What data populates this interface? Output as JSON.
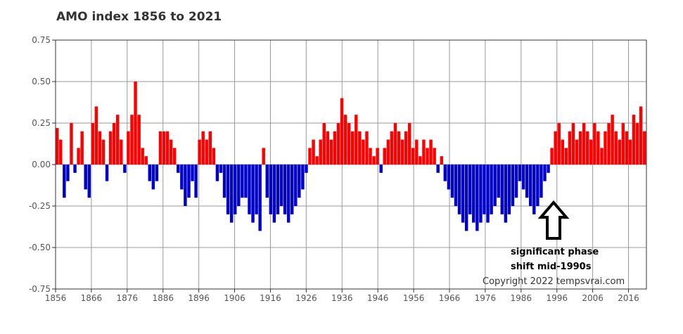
{
  "chart_data": {
    "type": "bar",
    "title": "AMO index 1856 to 2021",
    "xlabel": "",
    "ylabel": "",
    "xlim": [
      1856,
      2021
    ],
    "ylim": [
      -0.75,
      0.75
    ],
    "x_ticks": [
      "1856",
      "1866",
      "1876",
      "1886",
      "1896",
      "1906",
      "1916",
      "1926",
      "1936",
      "1946",
      "1956",
      "1966",
      "1976",
      "1986",
      "1996",
      "2006",
      "2016"
    ],
    "y_ticks": [
      "0.75",
      "0.50",
      "0.25",
      "0.00",
      "-0.25",
      "-0.50",
      "-0.75"
    ],
    "grid": true,
    "colors": {
      "positive": "#ff0000",
      "negative": "#0000cc",
      "grid": "#9a9a9a",
      "frame": "#333333"
    },
    "series": [
      {
        "x": [
          1856,
          1857,
          1858,
          1859,
          1860,
          1861,
          1862,
          1863,
          1864,
          1865,
          1866,
          1867,
          1868,
          1869,
          1870,
          1871,
          1872,
          1873,
          1874,
          1875,
          1876,
          1877,
          1878,
          1879,
          1880,
          1881,
          1882,
          1883,
          1884,
          1885,
          1886,
          1887,
          1888,
          1889,
          1890,
          1891,
          1892,
          1893,
          1894,
          1895,
          1896,
          1897,
          1898,
          1899,
          1900,
          1901,
          1902,
          1903,
          1904,
          1905,
          1906,
          1907,
          1908,
          1909,
          1910,
          1911,
          1912,
          1913,
          1914,
          1915,
          1916,
          1917,
          1918,
          1919,
          1920,
          1921,
          1922,
          1923,
          1924,
          1925,
          1926,
          1927,
          1928,
          1929,
          1930,
          1931,
          1932,
          1933,
          1934,
          1935,
          1936,
          1937,
          1938,
          1939,
          1940,
          1941,
          1942,
          1943,
          1944,
          1945,
          1946,
          1947,
          1948,
          1949,
          1950,
          1951,
          1952,
          1953,
          1954,
          1955,
          1956,
          1957,
          1958,
          1959,
          1960,
          1961,
          1962,
          1963,
          1964,
          1965,
          1966,
          1967,
          1968,
          1969,
          1970,
          1971,
          1972,
          1973,
          1974,
          1975,
          1976,
          1977,
          1978,
          1979,
          1980,
          1981,
          1982,
          1983,
          1984,
          1985,
          1986,
          1987,
          1988,
          1989,
          1990,
          1991,
          1992,
          1993,
          1994,
          1995,
          1996,
          1997,
          1998,
          1999,
          2000,
          2001,
          2002,
          2003,
          2004,
          2005,
          2006,
          2007,
          2008,
          2009,
          2010,
          2011,
          2012,
          2013,
          2014,
          2015,
          2016,
          2017,
          2018,
          2019,
          2020,
          2021
        ],
        "values": [
          0.22,
          0.15,
          -0.2,
          -0.1,
          0.25,
          -0.05,
          0.1,
          0.2,
          -0.15,
          -0.2,
          0.25,
          0.35,
          0.2,
          0.15,
          -0.1,
          0.2,
          0.25,
          0.3,
          0.15,
          -0.05,
          0.2,
          0.3,
          0.5,
          0.3,
          0.1,
          0.05,
          -0.1,
          -0.15,
          -0.1,
          0.2,
          0.2,
          0.2,
          0.15,
          0.1,
          -0.05,
          -0.15,
          -0.25,
          -0.2,
          -0.1,
          -0.2,
          0.15,
          0.2,
          0.15,
          0.2,
          0.1,
          -0.1,
          -0.05,
          -0.2,
          -0.3,
          -0.35,
          -0.3,
          -0.25,
          -0.2,
          -0.2,
          -0.3,
          -0.35,
          -0.3,
          -0.4,
          0.1,
          -0.2,
          -0.3,
          -0.35,
          -0.3,
          -0.25,
          -0.3,
          -0.35,
          -0.3,
          -0.25,
          -0.2,
          -0.15,
          -0.05,
          0.1,
          0.15,
          0.05,
          0.15,
          0.25,
          0.2,
          0.15,
          0.2,
          0.25,
          0.4,
          0.3,
          0.25,
          0.2,
          0.3,
          0.2,
          0.15,
          0.2,
          0.1,
          0.05,
          0.1,
          -0.05,
          0.1,
          0.15,
          0.2,
          0.25,
          0.2,
          0.15,
          0.2,
          0.25,
          0.1,
          0.15,
          0.05,
          0.15,
          0.1,
          0.15,
          0.1,
          -0.05,
          0.05,
          -0.1,
          -0.15,
          -0.2,
          -0.25,
          -0.3,
          -0.35,
          -0.4,
          -0.3,
          -0.35,
          -0.4,
          -0.35,
          -0.3,
          -0.35,
          -0.3,
          -0.25,
          -0.2,
          -0.3,
          -0.35,
          -0.3,
          -0.25,
          -0.2,
          -0.1,
          -0.15,
          -0.2,
          -0.25,
          -0.3,
          -0.25,
          -0.2,
          -0.1,
          -0.05,
          0.1,
          0.2,
          0.25,
          0.15,
          0.1,
          0.2,
          0.25,
          0.15,
          0.2,
          0.25,
          0.2,
          0.15,
          0.25,
          0.2,
          0.1,
          0.2,
          0.25,
          0.3,
          0.2,
          0.15,
          0.25,
          0.2,
          0.15,
          0.3,
          0.25,
          0.35,
          0.2
        ]
      }
    ],
    "annotations": [
      "significant phase",
      "shift mid-1990s"
    ],
    "annotation_marker": "up-arrow-icon",
    "copyright": "Copyright 2022 tempsvrai.com"
  }
}
